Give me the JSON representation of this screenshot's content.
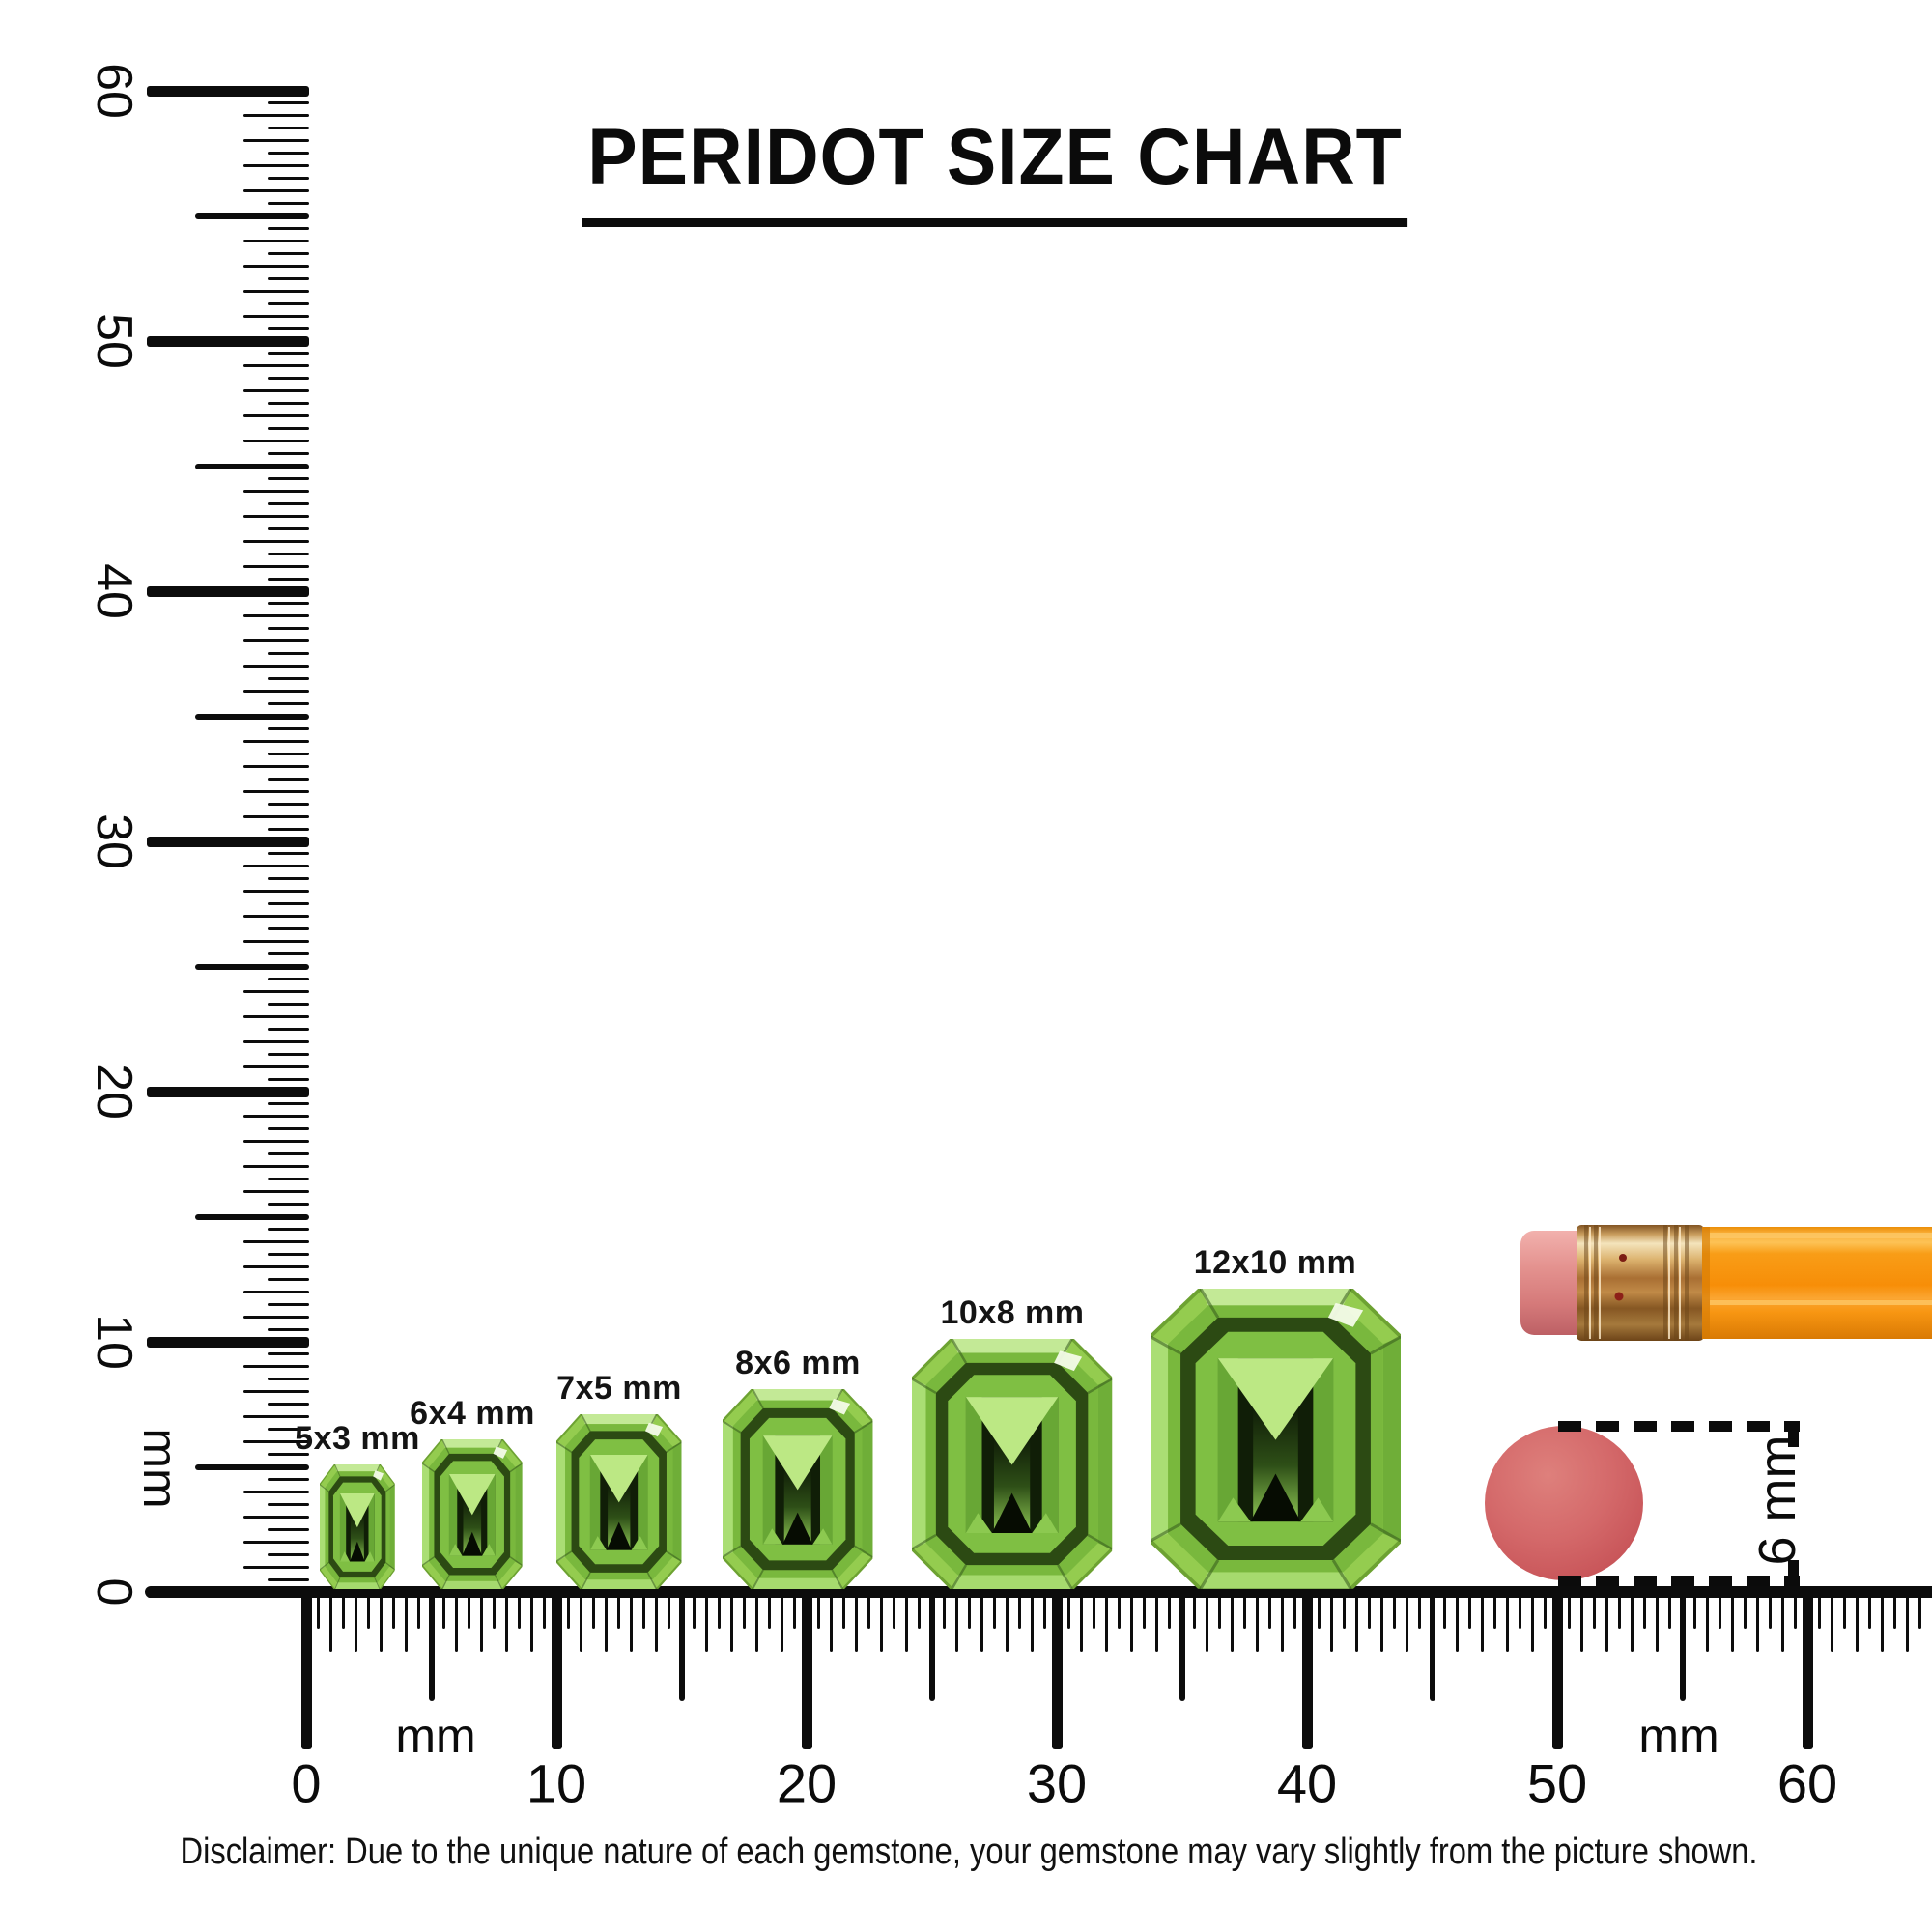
{
  "title": "PERIDOT SIZE CHART",
  "rulers": {
    "unit": "mm",
    "vertical_tick_labels": [
      "0",
      "10",
      "20",
      "30",
      "40",
      "50",
      "60"
    ],
    "horizontal_tick_labels": [
      "0",
      "10",
      "20",
      "30",
      "40",
      "50",
      "60"
    ]
  },
  "gems": [
    {
      "label": "5x3 mm",
      "size_mm": {
        "length": 5,
        "width": 3
      }
    },
    {
      "label": "6x4 mm",
      "size_mm": {
        "length": 6,
        "width": 4
      }
    },
    {
      "label": "7x5 mm",
      "size_mm": {
        "length": 7,
        "width": 5
      }
    },
    {
      "label": "8x6 mm",
      "size_mm": {
        "length": 8,
        "width": 6
      }
    },
    {
      "label": "10x8 mm",
      "size_mm": {
        "length": 10,
        "width": 8
      }
    },
    {
      "label": "12x10 mm",
      "size_mm": {
        "length": 12,
        "width": 10
      }
    }
  ],
  "reference_objects": {
    "pencil": "pencil tip with eraser",
    "eraser_disc_diameter_label": "6 mm"
  },
  "disclaimer": "Disclaimer: Due to the unique nature of each gemstone, your gemstone may vary slightly from the picture shown.",
  "colors": {
    "ink": "#0b0b0b",
    "gem_green": "#7cc142",
    "gem_green_light": "#bce884",
    "gem_green_dark": "#2c4a13",
    "pencil_orange": "#f78e08",
    "ferrule_gold": "#c89c5c",
    "eraser_pink": "#e4928f",
    "disc_pink": "#d4696a"
  }
}
